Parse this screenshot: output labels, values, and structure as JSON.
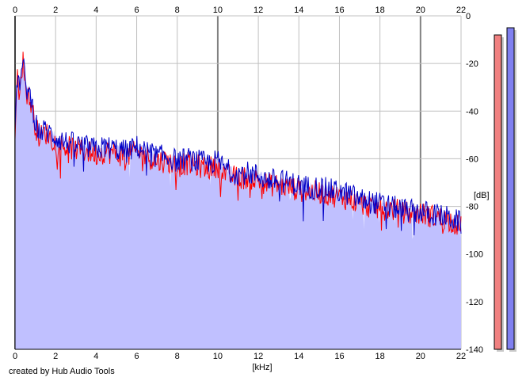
{
  "chart_data": {
    "type": "line",
    "title": "",
    "xlabel": "[kHz]",
    "ylabel": "[dB]",
    "xlim": [
      0,
      22
    ],
    "ylim": [
      -140,
      0
    ],
    "x_ticks": [
      "0",
      "2",
      "4",
      "6",
      "8",
      "10",
      "12",
      "14",
      "16",
      "18",
      "20",
      "22"
    ],
    "y_ticks": [
      "0",
      "-20",
      "-40",
      "-60",
      "-80",
      "-100",
      "-120",
      "-140"
    ],
    "grid": true,
    "colors": {
      "left": "#ff0000",
      "right": "#0000c8",
      "fill": "#c0c0ff",
      "meter_left": "#f08080",
      "meter_right": "#8080f0"
    },
    "series": [
      {
        "channel": "left",
        "x": [
          0,
          0.1,
          0.2,
          0.3,
          0.4,
          0.5,
          0.6,
          0.8,
          1.0,
          1.2,
          1.5,
          2.0,
          2.5,
          3.0,
          3.5,
          4.0,
          4.5,
          5.0,
          5.5,
          6.0,
          6.5,
          7.0,
          7.5,
          8.0,
          8.5,
          9.0,
          9.5,
          10.0,
          10.5,
          11.0,
          11.5,
          12.0,
          12.5,
          13.0,
          13.5,
          14.0,
          14.5,
          15.0,
          15.5,
          16.0,
          16.5,
          17.0,
          17.5,
          18.0,
          18.5,
          19.0,
          19.5,
          20.0,
          20.5,
          21.0,
          21.5,
          22.0
        ],
        "values": [
          -52,
          -25,
          -30,
          -22,
          -18,
          -28,
          -32,
          -36,
          -45,
          -50,
          -48,
          -52,
          -54,
          -55,
          -56,
          -57,
          -56,
          -57,
          -58,
          -56,
          -58,
          -60,
          -60,
          -62,
          -61,
          -62,
          -63,
          -62,
          -66,
          -67,
          -67,
          -68,
          -70,
          -70,
          -71,
          -72,
          -73,
          -73,
          -74,
          -75,
          -76,
          -78,
          -79,
          -80,
          -80,
          -81,
          -82,
          -82,
          -83,
          -84,
          -85,
          -88
        ]
      },
      {
        "channel": "right",
        "x": [
          0,
          0.1,
          0.2,
          0.3,
          0.4,
          0.5,
          0.6,
          0.8,
          1.0,
          1.2,
          1.5,
          2.0,
          2.5,
          3.0,
          3.5,
          4.0,
          4.5,
          5.0,
          5.5,
          6.0,
          6.5,
          7.0,
          7.5,
          8.0,
          8.5,
          9.0,
          9.5,
          10.0,
          10.5,
          11.0,
          11.5,
          12.0,
          12.5,
          13.0,
          13.5,
          14.0,
          14.5,
          15.0,
          15.5,
          16.0,
          16.5,
          17.0,
          17.5,
          18.0,
          18.5,
          19.0,
          19.5,
          20.0,
          20.5,
          21.0,
          21.5,
          22.0
        ],
        "values": [
          -48,
          -24,
          -28,
          -24,
          -20,
          -26,
          -30,
          -34,
          -43,
          -48,
          -47,
          -50,
          -52,
          -53,
          -54,
          -55,
          -54,
          -55,
          -56,
          -54,
          -56,
          -58,
          -58,
          -60,
          -59,
          -60,
          -61,
          -60,
          -64,
          -65,
          -65,
          -66,
          -68,
          -68,
          -69,
          -70,
          -71,
          -71,
          -72,
          -73,
          -74,
          -76,
          -77,
          -78,
          -79,
          -80,
          -81,
          -81,
          -82,
          -83,
          -84,
          -86
        ]
      }
    ],
    "meters": [
      {
        "channel": "left",
        "value": -8
      },
      {
        "channel": "right",
        "value": -5
      }
    ]
  },
  "footer": {
    "credit": "created by Hub Audio Tools"
  }
}
